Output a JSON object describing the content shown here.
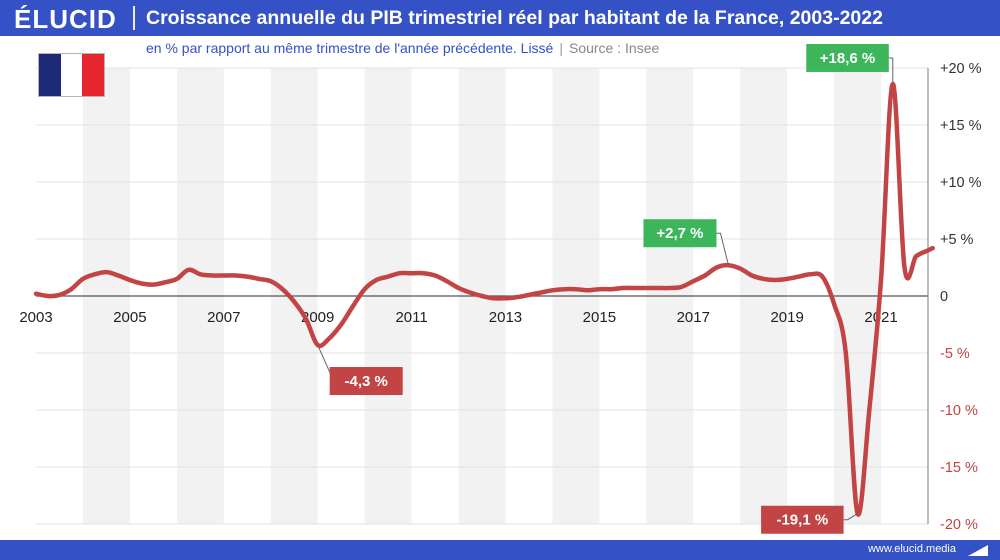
{
  "brand": {
    "logo_text": "ÉLUCID",
    "website": "www.elucid.media"
  },
  "header": {
    "title": "Croissance annuelle du PIB trimestriel réel par habitant de la France, 2003-2022",
    "subtitle": "en % par rapport au même trimestre de l'année précédente. Lissé",
    "separator": "|",
    "source": "Source : Insee"
  },
  "colors": {
    "brand_blue": "#3551c6",
    "line": "#c24444",
    "positive_label": "#3cb55b",
    "negative_label": "#c24444",
    "band": "#f2f2f2",
    "positive_tick": "#333333",
    "negative_tick": "#c24444",
    "flag_blue": "#1e2a78",
    "flag_white": "#ffffff",
    "flag_red": "#e5262e"
  },
  "icons": {
    "flag": "france-flag-icon",
    "footer_mark": "elucid-mark-icon"
  },
  "chart_data": {
    "type": "line",
    "title": "Croissance annuelle du PIB trimestriel réel par habitant de la France, 2003-2022",
    "subtitle": "en % par rapport au même trimestre de l'année précédente. Lissé",
    "xlim": [
      2003,
      2022
    ],
    "ylim": [
      -20,
      20
    ],
    "x_ticks": [
      "2003",
      "2005",
      "2007",
      "2009",
      "2011",
      "2013",
      "2015",
      "2017",
      "2019",
      "2021"
    ],
    "y_ticks": [
      {
        "value": 20,
        "label": "+20 %"
      },
      {
        "value": 15,
        "label": "+15 %"
      },
      {
        "value": 10,
        "label": "+10 %"
      },
      {
        "value": 5,
        "label": "+5 %"
      },
      {
        "value": 0,
        "label": "0"
      },
      {
        "value": -5,
        "label": "-5 %"
      },
      {
        "value": -10,
        "label": "-10 %"
      },
      {
        "value": -15,
        "label": "-15 %"
      },
      {
        "value": -20,
        "label": "-20 %"
      }
    ],
    "grid": true,
    "alternating_year_bands": true,
    "series": [
      {
        "points": [
          [
            2003.0,
            0.2
          ],
          [
            2003.25,
            0.0
          ],
          [
            2003.5,
            0.1
          ],
          [
            2003.75,
            0.6
          ],
          [
            2004.0,
            1.5
          ],
          [
            2004.25,
            1.9
          ],
          [
            2004.5,
            2.1
          ],
          [
            2004.75,
            1.8
          ],
          [
            2005.0,
            1.4
          ],
          [
            2005.25,
            1.1
          ],
          [
            2005.5,
            1.0
          ],
          [
            2005.75,
            1.2
          ],
          [
            2006.0,
            1.5
          ],
          [
            2006.25,
            2.3
          ],
          [
            2006.5,
            1.9
          ],
          [
            2006.75,
            1.8
          ],
          [
            2007.0,
            1.8
          ],
          [
            2007.25,
            1.8
          ],
          [
            2007.5,
            1.7
          ],
          [
            2007.75,
            1.5
          ],
          [
            2008.0,
            1.3
          ],
          [
            2008.25,
            0.6
          ],
          [
            2008.5,
            -0.5
          ],
          [
            2008.75,
            -2.0
          ],
          [
            2009.0,
            -4.3
          ],
          [
            2009.25,
            -3.7
          ],
          [
            2009.5,
            -2.5
          ],
          [
            2009.75,
            -0.9
          ],
          [
            2010.0,
            0.6
          ],
          [
            2010.25,
            1.4
          ],
          [
            2010.5,
            1.7
          ],
          [
            2010.75,
            2.0
          ],
          [
            2011.0,
            2.0
          ],
          [
            2011.25,
            2.0
          ],
          [
            2011.5,
            1.8
          ],
          [
            2011.75,
            1.3
          ],
          [
            2012.0,
            0.7
          ],
          [
            2012.25,
            0.3
          ],
          [
            2012.5,
            0.0
          ],
          [
            2012.75,
            -0.2
          ],
          [
            2013.0,
            -0.2
          ],
          [
            2013.25,
            -0.1
          ],
          [
            2013.5,
            0.1
          ],
          [
            2013.75,
            0.3
          ],
          [
            2014.0,
            0.5
          ],
          [
            2014.25,
            0.6
          ],
          [
            2014.5,
            0.6
          ],
          [
            2014.75,
            0.5
          ],
          [
            2015.0,
            0.6
          ],
          [
            2015.25,
            0.6
          ],
          [
            2015.5,
            0.7
          ],
          [
            2015.75,
            0.7
          ],
          [
            2016.0,
            0.7
          ],
          [
            2016.25,
            0.7
          ],
          [
            2016.5,
            0.7
          ],
          [
            2016.75,
            0.8
          ],
          [
            2017.0,
            1.3
          ],
          [
            2017.25,
            1.8
          ],
          [
            2017.5,
            2.5
          ],
          [
            2017.75,
            2.7
          ],
          [
            2018.0,
            2.4
          ],
          [
            2018.25,
            1.8
          ],
          [
            2018.5,
            1.5
          ],
          [
            2018.75,
            1.4
          ],
          [
            2019.0,
            1.5
          ],
          [
            2019.25,
            1.7
          ],
          [
            2019.5,
            1.9
          ],
          [
            2019.75,
            1.7
          ],
          [
            2020.0,
            -0.7
          ],
          [
            2020.25,
            -5.0
          ],
          [
            2020.5,
            -19.1
          ],
          [
            2020.75,
            -10.0
          ],
          [
            2021.0,
            1.5
          ],
          [
            2021.25,
            18.6
          ],
          [
            2021.5,
            2.5
          ],
          [
            2021.75,
            3.5
          ],
          [
            2022.0,
            4.0
          ],
          [
            2022.1,
            4.2
          ]
        ]
      }
    ],
    "annotations": [
      {
        "label": "+18,6 %",
        "x": 2021.25,
        "y": 18.6,
        "kind": "positive"
      },
      {
        "label": "+2,7 %",
        "x": 2017.75,
        "y": 2.7,
        "kind": "positive"
      },
      {
        "label": "-4,3 %",
        "x": 2009.0,
        "y": -4.3,
        "kind": "negative"
      },
      {
        "label": "-19,1 %",
        "x": 2020.5,
        "y": -19.1,
        "kind": "negative"
      }
    ]
  }
}
